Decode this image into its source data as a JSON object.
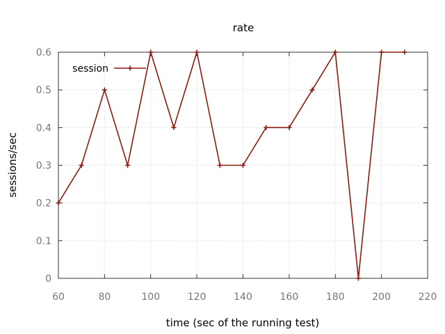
{
  "chart_data": {
    "type": "line",
    "title": "rate",
    "xlabel": "time (sec of the running test)",
    "ylabel": "sessions/sec",
    "xlim": [
      60,
      220
    ],
    "ylim": [
      0,
      0.6
    ],
    "xticks": [
      60,
      80,
      100,
      120,
      140,
      160,
      180,
      200,
      220
    ],
    "yticks": [
      0,
      0.1,
      0.2,
      0.3,
      0.4,
      0.5,
      0.6
    ],
    "xtick_labels": [
      "60",
      "80",
      "100",
      "120",
      "140",
      "160",
      "180",
      "200",
      "220"
    ],
    "ytick_labels": [
      "0",
      "0.1",
      "0.2",
      "0.3",
      "0.4",
      "0.5",
      "0.6"
    ],
    "grid": true,
    "legend_position": "top-left",
    "series": [
      {
        "name": "session",
        "color": "#8b1a0e",
        "marker": "plus",
        "x": [
          60,
          70,
          80,
          90,
          100,
          110,
          120,
          130,
          140,
          150,
          160,
          170,
          180,
          190,
          200,
          210
        ],
        "y": [
          0.2,
          0.3,
          0.5,
          0.3,
          0.6,
          0.4,
          0.6,
          0.3,
          0.3,
          0.4,
          0.4,
          0.5,
          0.6,
          0.0,
          0.6,
          0.6
        ]
      }
    ]
  }
}
